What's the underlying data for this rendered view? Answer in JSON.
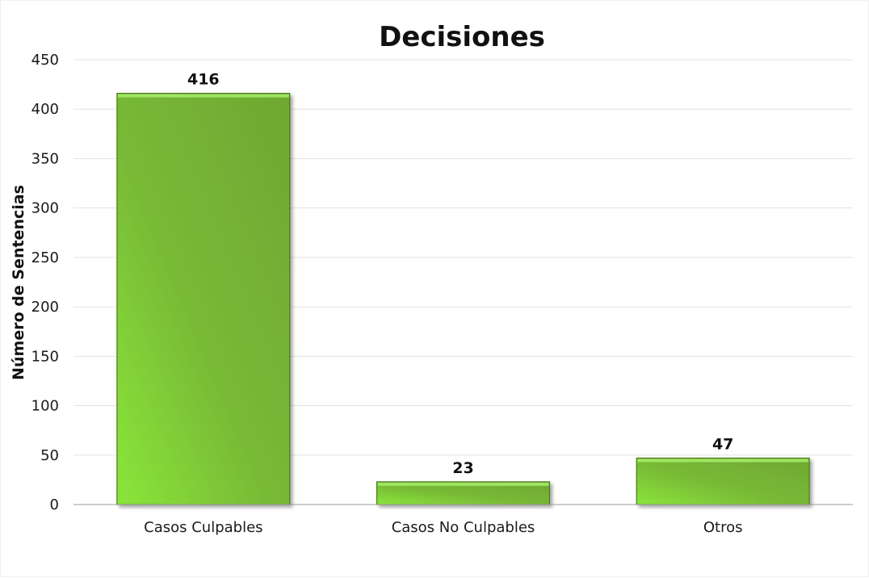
{
  "chart_data": {
    "type": "bar",
    "title": "Decisiones",
    "xlabel": "",
    "ylabel": "Número de Sentencias",
    "categories": [
      "Casos Culpables",
      "Casos No Culpables",
      "Otros"
    ],
    "values": [
      416,
      23,
      47
    ],
    "ylim": [
      0,
      450
    ],
    "yticks": [
      0,
      50,
      100,
      150,
      200,
      250,
      300,
      350,
      400,
      450
    ],
    "grid": true,
    "legend": "none",
    "colors": {
      "bar_light": "#8ae63a",
      "bar_mid": "#77b838",
      "bar_dark": "#6aa32e",
      "bar_edge": "#4d7a1f",
      "grid": "#e3e3e3",
      "axis": "#9a9a9a"
    }
  }
}
